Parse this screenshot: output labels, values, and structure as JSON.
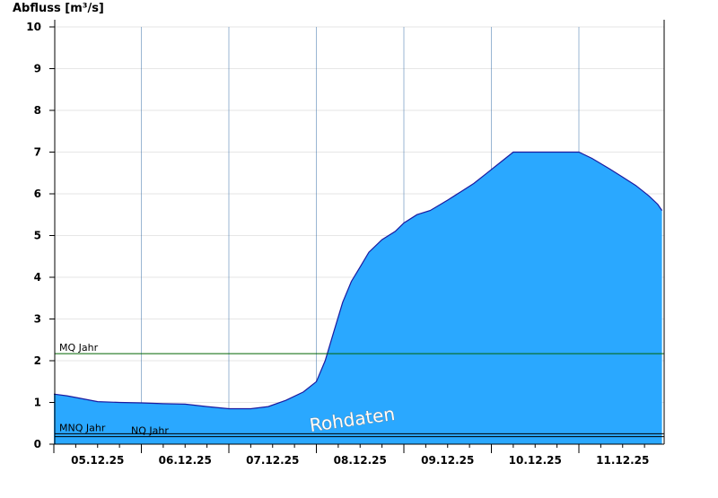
{
  "chart_data": {
    "type": "area",
    "ylabel": "Abfluss [m³/s]",
    "ylim": [
      0,
      10
    ],
    "yticks": [
      "0",
      "1",
      "2",
      "3",
      "4",
      "5",
      "6",
      "7",
      "8",
      "9",
      "10"
    ],
    "xticks": [
      "05.12.25",
      "06.12.25",
      "07.12.25",
      "08.12.25",
      "09.12.25",
      "10.12.25",
      "11.12.25"
    ],
    "grid": true,
    "fill_color": "#2aa8ff",
    "line_color": "#1a1aa0",
    "watermark": "Rohdaten",
    "reference_lines": [
      {
        "label": "MQ Jahr",
        "value": 2.17,
        "color": "#006400"
      },
      {
        "label": "MNQ Jahr",
        "value": 0.25,
        "color": "#000000"
      },
      {
        "label": "NQ Jahr",
        "value": 0.18,
        "color": "#000000"
      }
    ],
    "series": [
      {
        "x": [
          0,
          0.15,
          0.3,
          0.5,
          0.75,
          1.0,
          1.25,
          1.5,
          1.75,
          2.0,
          2.25,
          2.45,
          2.65,
          2.85,
          3.0,
          3.1,
          3.2,
          3.3,
          3.4,
          3.5,
          3.6,
          3.75,
          3.9,
          4.0,
          4.15,
          4.3,
          4.5,
          4.65,
          4.8,
          4.95,
          5.1,
          5.25,
          5.5,
          5.75,
          6.0,
          6.15,
          6.35,
          6.5,
          6.65,
          6.8,
          6.9,
          6.95
        ],
        "values": [
          1.2,
          1.16,
          1.1,
          1.02,
          1.0,
          0.99,
          0.97,
          0.96,
          0.9,
          0.85,
          0.85,
          0.9,
          1.05,
          1.25,
          1.5,
          2.0,
          2.7,
          3.4,
          3.9,
          4.25,
          4.6,
          4.9,
          5.1,
          5.3,
          5.5,
          5.6,
          5.85,
          6.05,
          6.25,
          6.5,
          6.75,
          7.0,
          7.0,
          7.0,
          7.0,
          6.85,
          6.6,
          6.4,
          6.2,
          5.95,
          5.75,
          5.6
        ]
      }
    ]
  }
}
